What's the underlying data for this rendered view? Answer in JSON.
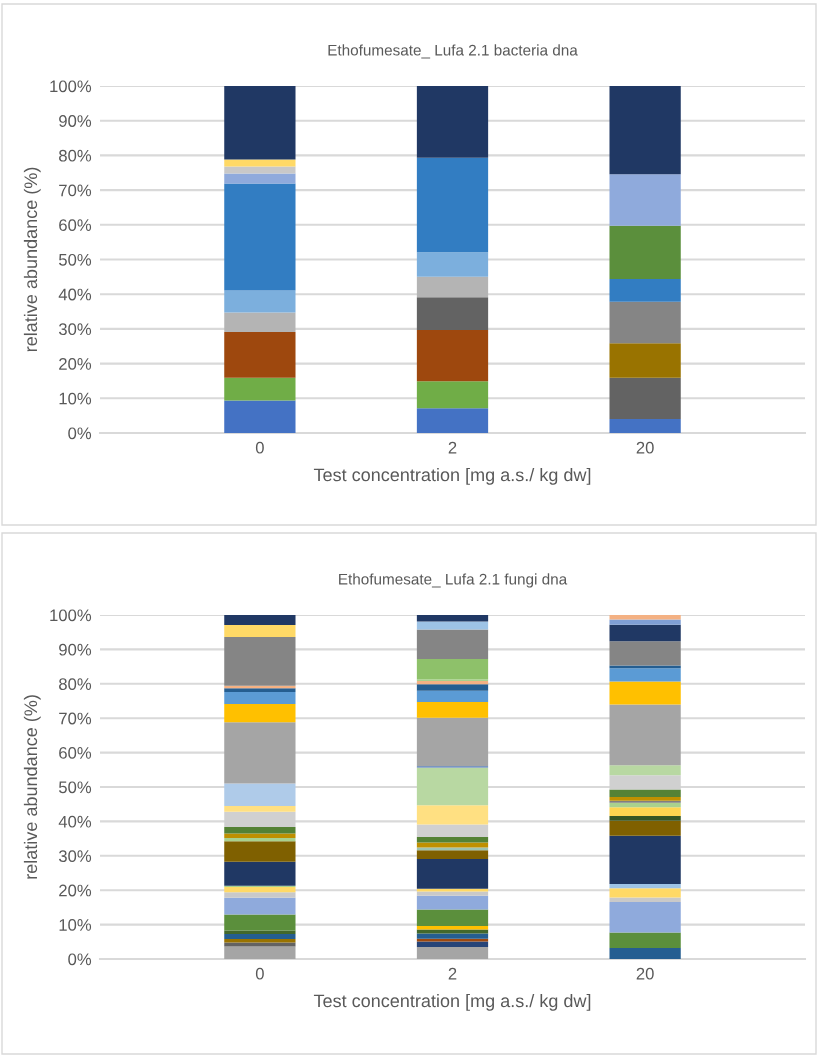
{
  "chart_data": [
    {
      "type": "bar",
      "stacked": true,
      "title": "Ethofumesate_ Lufa 2.1 bacteria dna",
      "xlabel": "Test concentration [mg a.s./ kg dw]",
      "ylabel": "relative abundance (%)",
      "categories": [
        "0",
        "2",
        "20"
      ],
      "ylim": [
        0,
        100
      ],
      "yticks": [
        {
          "value": 0,
          "label": "0%"
        },
        {
          "value": 10,
          "label": "10%"
        },
        {
          "value": 20,
          "label": "20%"
        },
        {
          "value": 30,
          "label": "30%"
        },
        {
          "value": 40,
          "label": "40%"
        },
        {
          "value": 50,
          "label": "50%"
        },
        {
          "value": 60,
          "label": "60%"
        },
        {
          "value": 70,
          "label": "70%"
        },
        {
          "value": 80,
          "label": "80%"
        },
        {
          "value": 90,
          "label": "90%"
        },
        {
          "value": 100,
          "label": "100%"
        }
      ],
      "grid": "y",
      "series": [
        {
          "values": [
            9.4,
            7.1,
            4.0
          ],
          "colors": [
            "#4472c4",
            "#4472c4",
            "#4472c4"
          ]
        },
        {
          "values": [
            6.5,
            7.8,
            11.9
          ],
          "colors": [
            "#70ad47",
            "#70ad47",
            "#636363"
          ]
        },
        {
          "values": [
            13.2,
            14.8,
            10.0
          ],
          "colors": [
            "#9e480e",
            "#9e480e",
            "#997300"
          ]
        },
        {
          "values": [
            5.6,
            9.4,
            11.9
          ],
          "colors": [
            "#b4b4b4",
            "#636363",
            "#858585"
          ]
        },
        {
          "values": [
            6.4,
            5.9,
            6.6
          ],
          "colors": [
            "#7cafdd",
            "#b4b4b4",
            "#327dc2"
          ]
        },
        {
          "values": [
            30.8,
            7.1,
            15.3
          ],
          "colors": [
            "#327dc2",
            "#7cafdd",
            "#5b8f3c"
          ]
        },
        {
          "values": [
            2.9,
            27.2,
            14.9
          ],
          "colors": [
            "#8faadc",
            "#327dc2",
            "#8faadc"
          ]
        },
        {
          "values": [
            2.0,
            20.7,
            25.4
          ],
          "colors": [
            "#c8c8c8",
            "#203864",
            "#203864"
          ]
        },
        {
          "values": [
            2.0,
            null,
            null
          ],
          "colors": [
            "#ffd966",
            null,
            null
          ]
        },
        {
          "values": [
            21.2,
            null,
            null
          ],
          "colors": [
            "#203864",
            null,
            null
          ]
        }
      ]
    },
    {
      "type": "bar",
      "stacked": true,
      "title": "Ethofumesate_ Lufa 2.1 fungi dna",
      "xlabel": "Test concentration [mg a.s./ kg dw]",
      "ylabel": "relative abundance (%)",
      "categories": [
        "0",
        "2",
        "20"
      ],
      "ylim": [
        0,
        100
      ],
      "yticks": [
        {
          "value": 0,
          "label": "0%"
        },
        {
          "value": 10,
          "label": "10%"
        },
        {
          "value": 20,
          "label": "20%"
        },
        {
          "value": 30,
          "label": "30%"
        },
        {
          "value": 40,
          "label": "40%"
        },
        {
          "value": 50,
          "label": "50%"
        },
        {
          "value": 60,
          "label": "60%"
        },
        {
          "value": 70,
          "label": "70%"
        },
        {
          "value": 80,
          "label": "80%"
        },
        {
          "value": 90,
          "label": "90%"
        },
        {
          "value": 100,
          "label": "100%"
        }
      ],
      "grid": "y",
      "series": [
        {
          "values": [
            3.6,
            3.5,
            3.2
          ],
          "colors": [
            "#a5a5a5",
            "#a5a5a5",
            "#255e91"
          ]
        },
        {
          "values": [
            1.2,
            1.6,
            4.5
          ],
          "colors": [
            "#636363",
            "#264478",
            "#5b8f3c"
          ]
        },
        {
          "values": [
            1.0,
            0.8,
            8.9
          ],
          "colors": [
            "#997300",
            "#9e480e",
            "#8faadc"
          ]
        },
        {
          "values": [
            1.5,
            1.5,
            1.3
          ],
          "colors": [
            "#255e91",
            "#255e91",
            "#c9c9c9"
          ]
        },
        {
          "values": [
            1.0,
            1.2,
            2.7
          ],
          "colors": [
            "#43682b",
            "#43682b",
            "#ffd966"
          ]
        },
        {
          "values": [
            4.6,
            1.0,
            1.2
          ],
          "colors": [
            "#5b8f3c",
            "#ffc000",
            "#9dc3e6"
          ]
        },
        {
          "values": [
            4.9,
            4.8,
            14.0
          ],
          "colors": [
            "#8faadc",
            "#5b8f3c",
            "#203864"
          ]
        },
        {
          "values": [
            1.6,
            4.0,
            4.4
          ],
          "colors": [
            "#c9c9c9",
            "#8faadc",
            "#7f6000"
          ]
        },
        {
          "values": [
            1.5,
            1.2,
            1.4
          ],
          "colors": [
            "#ffd966",
            "#c9c9c9",
            "#375623"
          ]
        },
        {
          "values": [
            0.4,
            0.8,
            2.5
          ],
          "colors": [
            "#a9d18e",
            "#ffd966",
            "#ffd54f"
          ]
        },
        {
          "values": [
            7.0,
            8.7,
            1.3
          ],
          "colors": [
            "#203864",
            "#203864",
            "#a9d18e"
          ]
        },
        {
          "values": [
            5.9,
            2.5,
            0.6
          ],
          "colors": [
            "#7f6000",
            "#7f6000",
            "#7f7f7f"
          ]
        },
        {
          "values": [
            1.0,
            0.8,
            1.1
          ],
          "colors": [
            "#a9d18e",
            "#9dc3b0",
            "#bf9000"
          ]
        },
        {
          "values": [
            1.3,
            1.5,
            2.2
          ],
          "colors": [
            "#bf9000",
            "#bf9000",
            "#548235"
          ]
        },
        {
          "values": [
            1.9,
            1.6,
            4.1
          ],
          "colors": [
            "#548235",
            "#548235",
            "#d0d0d0"
          ]
        },
        {
          "values": [
            4.4,
            3.6,
            2.9
          ],
          "colors": [
            "#d0d0d0",
            "#d0d0d0",
            "#b8d8a2"
          ]
        },
        {
          "values": [
            1.7,
            5.6,
            17.7
          ],
          "colors": [
            "#ffe082",
            "#ffe082",
            "#a5a5a5"
          ]
        },
        {
          "values": [
            6.5,
            10.9,
            6.7
          ],
          "colors": [
            "#afcbe9",
            "#b8d8a2",
            "#ffc000"
          ]
        },
        {
          "values": [
            17.8,
            0.5,
            3.8
          ],
          "colors": [
            "#a5a5a5",
            "#7a96c0",
            "#5b9bd5"
          ]
        },
        {
          "values": [
            5.3,
            14.0,
            0.8
          ],
          "colors": [
            "#ffc000",
            "#a5a5a5",
            "#255e91"
          ]
        },
        {
          "values": [
            3.5,
            4.6,
            7.1
          ],
          "colors": [
            "#5b9bd5",
            "#ffc000",
            "#858585"
          ]
        },
        {
          "values": [
            1.1,
            3.3,
            4.8
          ],
          "colors": [
            "#255e91",
            "#5b9bd5",
            "#203864"
          ]
        },
        {
          "values": [
            0.7,
            1.9,
            1.5
          ],
          "colors": [
            "#f4b183",
            "#255e91",
            "#7f9fd5"
          ]
        },
        {
          "values": [
            14.2,
            0.9,
            1.3
          ],
          "colors": [
            "#858585",
            "#f4b183",
            "#f4b183"
          ]
        },
        {
          "values": [
            3.5,
            0.5,
            null
          ],
          "colors": [
            "#ffd966",
            "#a9d18e",
            null
          ]
        },
        {
          "values": [
            2.9,
            5.9,
            null
          ],
          "colors": [
            "#203864",
            "#8ec16a",
            null
          ]
        },
        {
          "values": [
            null,
            8.6,
            null
          ],
          "colors": [
            null,
            "#858585",
            null
          ]
        },
        {
          "values": [
            null,
            2.3,
            null
          ],
          "colors": [
            null,
            "#9dc3e6",
            null
          ]
        },
        {
          "values": [
            null,
            1.9,
            null
          ],
          "colors": [
            null,
            "#203864",
            null
          ]
        }
      ]
    }
  ]
}
